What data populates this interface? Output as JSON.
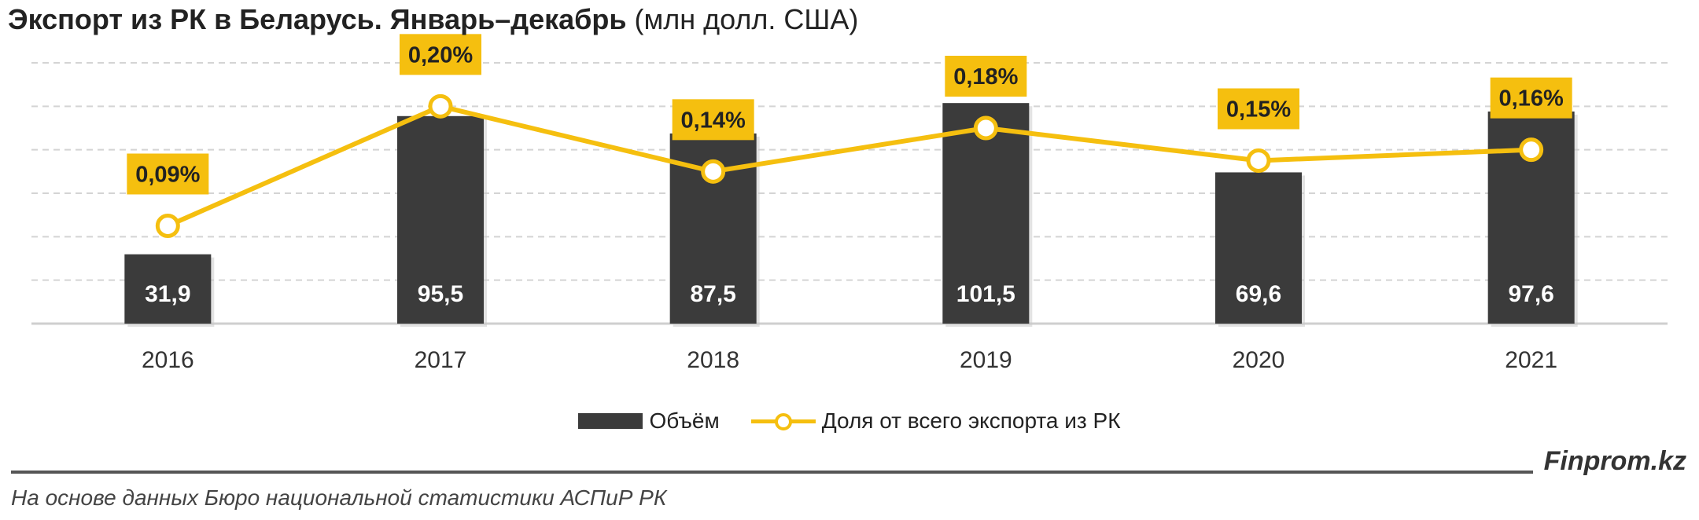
{
  "title": {
    "bold": "Экспорт из РК в Беларусь. Январь–декабрь",
    "unit": "(млн долл. США)"
  },
  "legend": {
    "bars": "Объём",
    "line": "Доля от всего экспорта из РК"
  },
  "footer": {
    "brand": "Finprom.kz",
    "source": "На основе данных Бюро национальной статистики АСПиР РК"
  },
  "colors": {
    "bar": "#3b3b3b",
    "line": "#f5bf0f",
    "label_bg": "#f5bf0f",
    "grid": "#d4d4d4",
    "axis": "#cfcfcf"
  },
  "chart_data": {
    "type": "bar+line",
    "categories": [
      "2016",
      "2017",
      "2018",
      "2019",
      "2020",
      "2021"
    ],
    "series": [
      {
        "name": "Объём",
        "type": "bar",
        "values": [
          31.9,
          95.5,
          87.5,
          101.5,
          69.6,
          97.6
        ],
        "labels": [
          "31,9",
          "95,5",
          "87,5",
          "101,5",
          "69,6",
          "97,6"
        ]
      },
      {
        "name": "Доля от всего экспорта из РК",
        "type": "line",
        "axis": "secondary",
        "values": [
          0.09,
          0.2,
          0.14,
          0.18,
          0.15,
          0.16
        ],
        "labels": [
          "0,09%",
          "0,20%",
          "0,14%",
          "0,18%",
          "0,15%",
          "0,16%"
        ]
      }
    ],
    "ylim": [
      0,
      120
    ],
    "y2lim": [
      0,
      0.24
    ],
    "grid": true,
    "legend_position": "bottom"
  }
}
